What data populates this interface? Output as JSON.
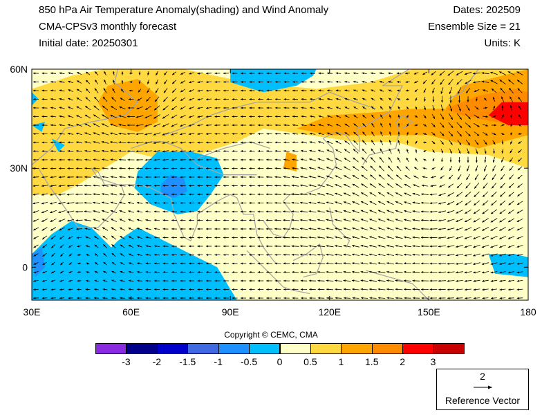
{
  "header": {
    "title": "850 hPa Air Temperature Anomaly(shading) and Wind Anomaly",
    "model": "CMA-CPSv3 monthly forecast",
    "initial_date": "Initial date: 20250301",
    "dates": "Dates: 202509",
    "ensemble": "Ensemble Size = 21",
    "units": "Units: K"
  },
  "axes": {
    "lat_labels": [
      "60N",
      "30N",
      "0"
    ],
    "lon_labels": [
      "30E",
      "60E",
      "90E",
      "120E",
      "150E",
      "180"
    ]
  },
  "copyright": "Copyright © CEMC, CMA",
  "colorbar": {
    "colors": [
      "#8a2be2",
      "#00008b",
      "#0000cd",
      "#4169e1",
      "#1e90ff",
      "#00bfff",
      "#ffffc8",
      "#ffd93f",
      "#ffa500",
      "#ff8c00",
      "#ff0000",
      "#c80000"
    ],
    "labels": [
      "-3",
      "-2",
      "-1.5",
      "-1",
      "-0.5",
      "0",
      "0.5",
      "1",
      "1.5",
      "2",
      "3"
    ]
  },
  "reference_vector": {
    "magnitude": "2",
    "label": "Reference Vector"
  },
  "map_colors": {
    "neutral": "#ffffc8",
    "coast": "#a6a6a6",
    "arrow": "#000000"
  }
}
